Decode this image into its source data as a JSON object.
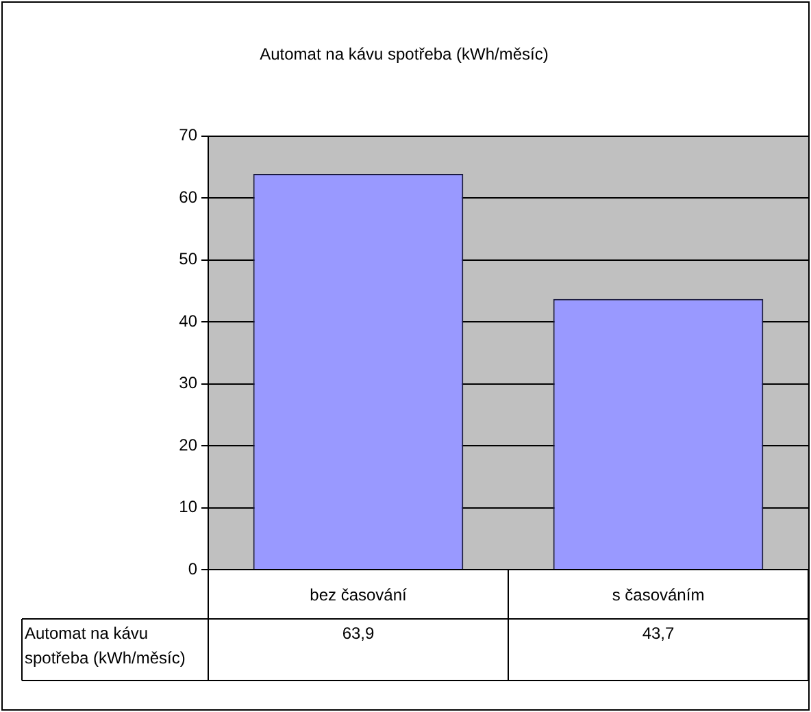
{
  "chart_data": {
    "type": "bar",
    "title": "Automat na kávu spotřeba (kWh/měsíc)",
    "categories": [
      "bez časování",
      "s časováním"
    ],
    "series": [
      {
        "name": "Automat na kávu spotřeba (kWh/měsíc)",
        "color": "#9999ff",
        "values": [
          63.9,
          43.7
        ],
        "value_labels": [
          "63,9",
          "43,7"
        ]
      }
    ],
    "ylim": [
      0,
      70
    ],
    "yticks": [
      0,
      10,
      20,
      30,
      40,
      50,
      60,
      70
    ],
    "grid": "y",
    "legend": false,
    "data_labels": true
  }
}
